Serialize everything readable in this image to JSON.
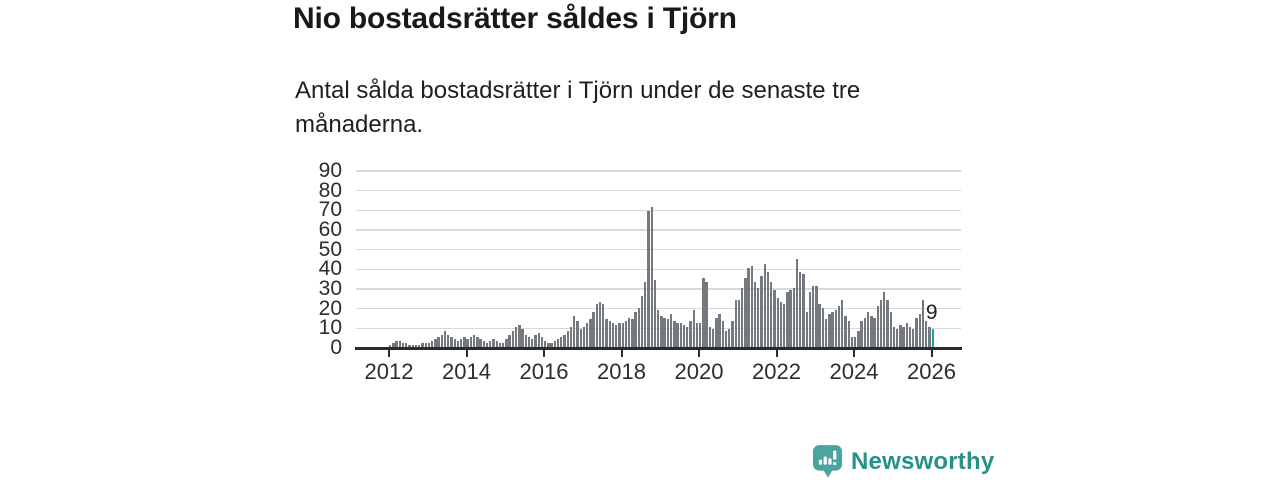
{
  "title": "Nio bostadsrätter såldes i Tjörn",
  "subtitle": "Antal sålda bostadsrätter i Tjörn under de senaste tre månaderna.",
  "chart_data": {
    "type": "bar",
    "title": "Nio bostadsrätter såldes i Tjörn",
    "subtitle": "Antal sålda bostadsrätter i Tjörn under de senaste tre månaderna.",
    "x_tick_labels": [
      "2012",
      "2014",
      "2016",
      "2018",
      "2020",
      "2022",
      "2024",
      "2026"
    ],
    "y_ticks": [
      0,
      10,
      20,
      30,
      40,
      50,
      60,
      70,
      80,
      90
    ],
    "ylim": [
      0,
      90
    ],
    "grid": true,
    "legend": false,
    "x_start": "2011-10",
    "x_end": "2026-01",
    "months_per_bar": 1,
    "bar_color": "#74787f",
    "highlight_color": "#18a79e",
    "annotation": {
      "text": "9",
      "bar_index": 171
    },
    "highlight_index": 171,
    "values": [
      0,
      0,
      0,
      1,
      2,
      3,
      3,
      2,
      2,
      1,
      1,
      1,
      1,
      2,
      2,
      2,
      3,
      4,
      5,
      6,
      8,
      6,
      5,
      4,
      3,
      4,
      5,
      4,
      5,
      6,
      5,
      4,
      3,
      2,
      3,
      4,
      3,
      2,
      2,
      4,
      6,
      8,
      10,
      11,
      9,
      6,
      5,
      4,
      6,
      7,
      5,
      3,
      2,
      2,
      3,
      4,
      5,
      6,
      8,
      10,
      16,
      13,
      9,
      10,
      12,
      14,
      18,
      22,
      23,
      22,
      14,
      13,
      12,
      11,
      12,
      12,
      13,
      15,
      14,
      18,
      20,
      26,
      33,
      69,
      71,
      34,
      19,
      16,
      15,
      14,
      17,
      13,
      12,
      12,
      11,
      10,
      13,
      19,
      12,
      12,
      35,
      33,
      10,
      9,
      15,
      17,
      13,
      8,
      9,
      13,
      24,
      24,
      30,
      35,
      40,
      41,
      33,
      30,
      36,
      42,
      38,
      33,
      29,
      25,
      23,
      22,
      28,
      29,
      30,
      45,
      38,
      37,
      18,
      28,
      31,
      31,
      22,
      20,
      14,
      17,
      18,
      19,
      21,
      24,
      16,
      13,
      5,
      5,
      8,
      13,
      15,
      18,
      16,
      15,
      21,
      24,
      28,
      24,
      18,
      10,
      9,
      11,
      10,
      12,
      10,
      9,
      15,
      17,
      24,
      13,
      10,
      9
    ]
  },
  "branding": {
    "logo_text": "Newsworthy",
    "wordmark_color": "#27918a",
    "icon_color": "#49a59e",
    "icon": "newsworthy-chart-bubble-icon"
  }
}
